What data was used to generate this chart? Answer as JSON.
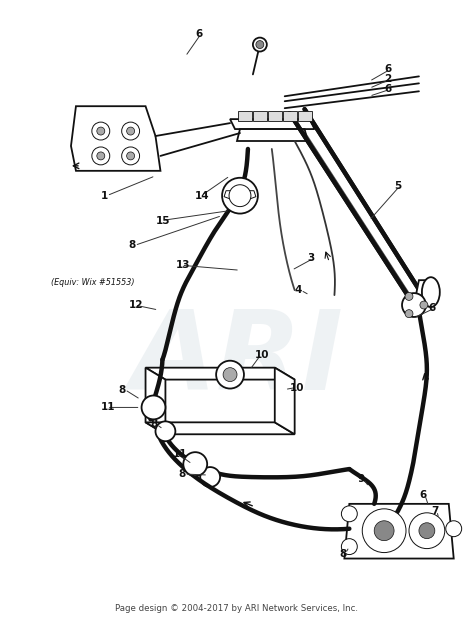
{
  "footer": "Page design © 2004-2017 by ARI Network Services, Inc.",
  "background_color": "#ffffff",
  "fig_width": 4.74,
  "fig_height": 6.21,
  "dpi": 100,
  "watermark": "ARI",
  "watermark_color": "#c8d4dc",
  "watermark_alpha": 0.3,
  "line_color": "#111111",
  "label_fontsize": 7.5,
  "footer_fontsize": 6.2,
  "lw_thin": 0.7,
  "lw_med": 1.3,
  "lw_thick": 3.2
}
